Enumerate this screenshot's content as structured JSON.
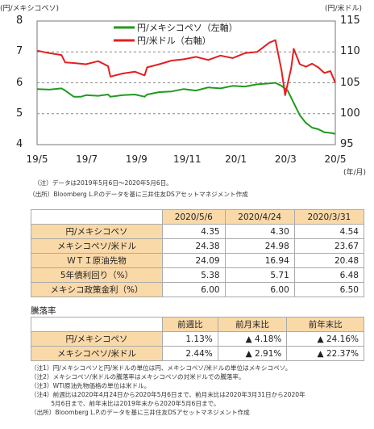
{
  "chart_data": {
    "type": "line",
    "left_axis_label": "(円/メキシコペソ)",
    "right_axis_label": "(円/米ドル)",
    "x_unit_label": "(年/月)",
    "x_ticks": [
      "19/5",
      "19/7",
      "19/9",
      "19/11",
      "20/1",
      "20/3",
      "20/5"
    ],
    "y_left": {
      "min": 4,
      "max": 8,
      "ticks": [
        "4",
        "5",
        "6",
        "7",
        "8"
      ]
    },
    "y_right": {
      "min": 95,
      "max": 115,
      "ticks": [
        "95",
        "100",
        "105",
        "110",
        "115"
      ]
    },
    "grid": "dashed horizontal",
    "legend_position": "top-center",
    "series": [
      {
        "name": "円/メキシコペソ（左軸）",
        "axis": "left",
        "color": "#1f9a1f",
        "points": [
          [
            0,
            5.8
          ],
          [
            1,
            5.78
          ],
          [
            2,
            5.82
          ],
          [
            2.3,
            5.75
          ],
          [
            3,
            5.55
          ],
          [
            3.6,
            5.55
          ],
          [
            4,
            5.6
          ],
          [
            5,
            5.58
          ],
          [
            5.8,
            5.62
          ],
          [
            6,
            5.55
          ],
          [
            7,
            5.6
          ],
          [
            8,
            5.62
          ],
          [
            8.8,
            5.55
          ],
          [
            9,
            5.62
          ],
          [
            10,
            5.7
          ],
          [
            11,
            5.72
          ],
          [
            12,
            5.8
          ],
          [
            13,
            5.75
          ],
          [
            14,
            5.85
          ],
          [
            15,
            5.82
          ],
          [
            16,
            5.9
          ],
          [
            17,
            5.88
          ],
          [
            18,
            5.95
          ],
          [
            19,
            5.98
          ],
          [
            19.5,
            6.0
          ],
          [
            20,
            5.9
          ],
          [
            20.5,
            5.75
          ],
          [
            21,
            5.35
          ],
          [
            21.5,
            4.95
          ],
          [
            22,
            4.7
          ],
          [
            22.5,
            4.55
          ],
          [
            23,
            4.5
          ],
          [
            23.5,
            4.4
          ],
          [
            24,
            4.38
          ],
          [
            24.4,
            4.35
          ]
        ]
      },
      {
        "name": "円/米ドル（右軸）",
        "axis": "right",
        "color": "#e31f1f",
        "points": [
          [
            0,
            110.2
          ],
          [
            1,
            109.8
          ],
          [
            2,
            109.5
          ],
          [
            2.3,
            108.3
          ],
          [
            3,
            108.2
          ],
          [
            4,
            108.0
          ],
          [
            5,
            108.5
          ],
          [
            5.8,
            107.7
          ],
          [
            6,
            106.0
          ],
          [
            7,
            106.5
          ],
          [
            8,
            106.8
          ],
          [
            8.8,
            106.2
          ],
          [
            9,
            107.5
          ],
          [
            10,
            108.0
          ],
          [
            11,
            108.6
          ],
          [
            12,
            108.8
          ],
          [
            13,
            109.2
          ],
          [
            14,
            108.7
          ],
          [
            15,
            109.4
          ],
          [
            16,
            109.0
          ],
          [
            17,
            109.8
          ],
          [
            18,
            110.0
          ],
          [
            19,
            111.5
          ],
          [
            19.5,
            111.9
          ],
          [
            20,
            107.0
          ],
          [
            20.3,
            103.0
          ],
          [
            20.8,
            107.5
          ],
          [
            21,
            110.5
          ],
          [
            21.5,
            108.0
          ],
          [
            22,
            107.6
          ],
          [
            22.5,
            108.1
          ],
          [
            23,
            107.5
          ],
          [
            23.5,
            106.6
          ],
          [
            24,
            106.9
          ],
          [
            24.4,
            105.0
          ]
        ]
      }
    ]
  },
  "chart_notes": [
    "（注）データは2019年5月6日～2020年5月6日。",
    "（出所）Bloomberg L.P.のデータを基に三井住友DSアセットマネジメント作成"
  ],
  "table1": {
    "headers": [
      "2020/5/6",
      "2020/4/24",
      "2020/3/31"
    ],
    "rows": [
      {
        "label": "円/メキシコペソ",
        "values": [
          "4.35",
          "4.30",
          "4.54"
        ]
      },
      {
        "label": "メキシコペソ/米ドル",
        "values": [
          "24.38",
          "24.98",
          "23.67"
        ]
      },
      {
        "label": "ＷＴＩ原油先物",
        "values": [
          "24.09",
          "16.94",
          "20.48"
        ]
      },
      {
        "label": "5年債利回り（%）",
        "values": [
          "5.38",
          "5.71",
          "6.48"
        ]
      },
      {
        "label": "メキシコ政策金利（%）",
        "values": [
          "6.00",
          "6.00",
          "6.50"
        ]
      }
    ]
  },
  "table2": {
    "title": "騰落率",
    "headers": [
      "前週比",
      "前月末比",
      "前年末比"
    ],
    "rows": [
      {
        "label": "円/メキシコペソ",
        "values": [
          "1.13%",
          "▲ 4.18%",
          "▲ 24.16%"
        ]
      },
      {
        "label": "メキシコペソ/米ドル",
        "values": [
          "2.44%",
          "▲ 2.91%",
          "▲ 22.37%"
        ]
      }
    ]
  },
  "footnotes": [
    "（注1）円/メキシコペソと円/米ドルの単位は円、メキシコペソ/米ドルの単位はメキシコペソ。",
    "（注2）メキシコペソ/米ドルの騰落率はメキシコペソの対米ドルでの騰落率。",
    "（注3）WTI原油先物価格の単位は米ドル。",
    "（注4）前週比は2020年4月24日から2020年5月6日まで、前月末比は2020年3月31日から2020年",
    "　　　 5月6日まで、前年末比は2019年末から2020年5月6日まで。",
    "（出所）Bloomberg L.P.のデータを基に三井住友DSアセットマネジメント作成"
  ]
}
